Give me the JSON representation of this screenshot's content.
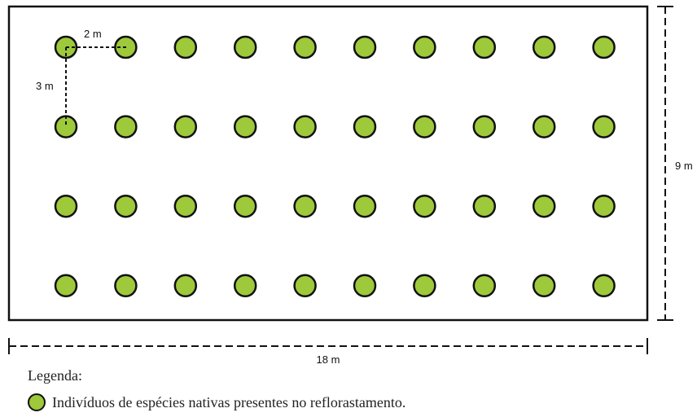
{
  "colors": {
    "tree_fill": "#9dc93a",
    "tree_stroke": "#111111",
    "line": "#111111"
  },
  "grid": {
    "rows": 4,
    "columns": 10,
    "spacing_x": "2 m",
    "spacing_y": "3 m"
  },
  "dimensions": {
    "width_label": "18 m",
    "height_label": "9 m",
    "spacing_x_label": "2 m",
    "spacing_y_label": "3 m"
  },
  "legend": {
    "title": "Legenda:",
    "items": [
      {
        "label": "Indivíduos de espécies nativas presentes no reflorastamento.",
        "icon": "green-circle-icon"
      }
    ]
  }
}
